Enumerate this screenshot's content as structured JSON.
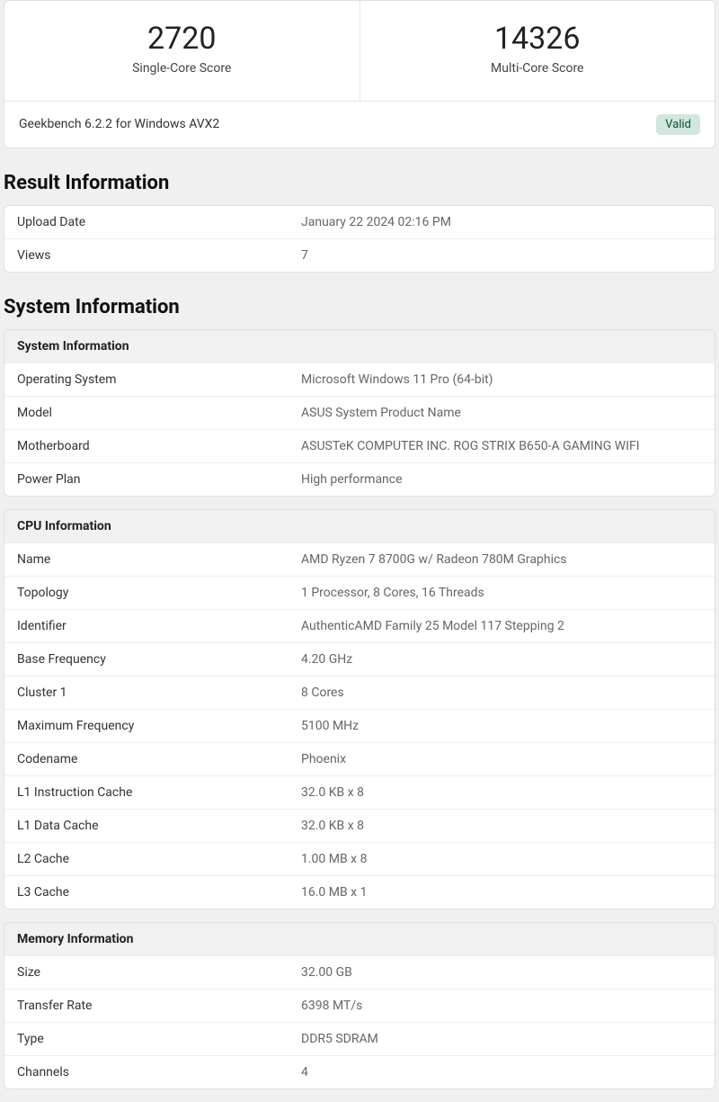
{
  "scores": {
    "single_value": "2720",
    "single_label": "Single-Core Score",
    "multi_value": "14326",
    "multi_label": "Multi-Core Score"
  },
  "version_line": "Geekbench 6.2.2 for Windows AVX2",
  "valid_badge": "Valid",
  "badge_bg": "#d1e7dd",
  "badge_fg": "#0f5132",
  "sections": {
    "result_info": {
      "title": "Result Information",
      "rows": [
        {
          "label": "Upload Date",
          "value": "January 22 2024 02:16 PM"
        },
        {
          "label": "Views",
          "value": "7"
        }
      ]
    },
    "system_info": {
      "title": "System Information",
      "groups": [
        {
          "header": "System Information",
          "rows": [
            {
              "label": "Operating System",
              "value": "Microsoft Windows 11 Pro (64-bit)"
            },
            {
              "label": "Model",
              "value": "ASUS System Product Name"
            },
            {
              "label": "Motherboard",
              "value": "ASUSTeK COMPUTER INC. ROG STRIX B650-A GAMING WIFI"
            },
            {
              "label": "Power Plan",
              "value": "High performance"
            }
          ]
        },
        {
          "header": "CPU Information",
          "rows": [
            {
              "label": "Name",
              "value": "AMD Ryzen 7 8700G w/ Radeon 780M Graphics"
            },
            {
              "label": "Topology",
              "value": "1 Processor, 8 Cores, 16 Threads"
            },
            {
              "label": "Identifier",
              "value": "AuthenticAMD Family 25 Model 117 Stepping 2"
            },
            {
              "label": "Base Frequency",
              "value": "4.20 GHz"
            },
            {
              "label": "Cluster 1",
              "value": "8 Cores"
            },
            {
              "label": "Maximum Frequency",
              "value": "5100 MHz"
            },
            {
              "label": "Codename",
              "value": "Phoenix"
            },
            {
              "label": "L1 Instruction Cache",
              "value": "32.0 KB x 8"
            },
            {
              "label": "L1 Data Cache",
              "value": "32.0 KB x 8"
            },
            {
              "label": "L2 Cache",
              "value": "1.00 MB x 8"
            },
            {
              "label": "L3 Cache",
              "value": "16.0 MB x 1"
            }
          ]
        },
        {
          "header": "Memory Information",
          "rows": [
            {
              "label": "Size",
              "value": "32.00 GB"
            },
            {
              "label": "Transfer Rate",
              "value": "6398 MT/s"
            },
            {
              "label": "Type",
              "value": "DDR5 SDRAM"
            },
            {
              "label": "Channels",
              "value": "4"
            }
          ]
        }
      ]
    }
  }
}
